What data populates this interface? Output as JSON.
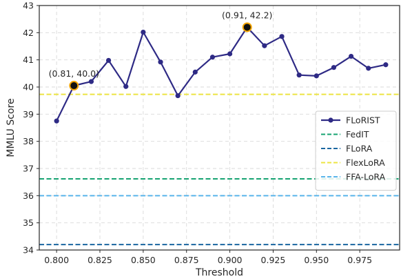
{
  "chart_data": {
    "type": "line",
    "xlabel": "Threshold",
    "ylabel": "MMLU Score",
    "xlim": [
      0.79,
      0.998
    ],
    "ylim": [
      34,
      43
    ],
    "xticks": [
      0.8,
      0.825,
      0.85,
      0.875,
      0.9,
      0.925,
      0.95,
      0.975
    ],
    "xtick_labels": [
      "0.800",
      "0.825",
      "0.850",
      "0.875",
      "0.900",
      "0.925",
      "0.950",
      "0.975"
    ],
    "yticks": [
      34,
      35,
      36,
      37,
      38,
      39,
      40,
      41,
      42,
      43
    ],
    "ytick_labels": [
      "34",
      "35",
      "36",
      "37",
      "38",
      "39",
      "40",
      "41",
      "42",
      "43"
    ],
    "grid": true,
    "legend_position": "center-right",
    "series": [
      {
        "name": "FLoRIST",
        "style": "line-marker",
        "color": "#2e2a85",
        "x": [
          0.8,
          0.81,
          0.82,
          0.83,
          0.84,
          0.85,
          0.86,
          0.87,
          0.88,
          0.89,
          0.9,
          0.91,
          0.92,
          0.93,
          0.94,
          0.95,
          0.96,
          0.97,
          0.98,
          0.99
        ],
        "y": [
          38.75,
          40.05,
          40.2,
          40.98,
          40.02,
          42.02,
          40.92,
          39.68,
          40.55,
          41.1,
          41.22,
          42.2,
          41.52,
          41.86,
          40.44,
          40.41,
          40.72,
          41.13,
          40.69,
          40.82
        ]
      },
      {
        "name": "FedIT",
        "style": "hline",
        "color": "#16a371",
        "y": 36.62
      },
      {
        "name": "FLoRA",
        "style": "hline",
        "color": "#1a66a0",
        "y": 34.2
      },
      {
        "name": "FlexLoRA",
        "style": "hline",
        "color": "#ece442",
        "y": 39.73
      },
      {
        "name": "FFA-LoRA",
        "style": "hline",
        "color": "#58b4ea",
        "y": 36.0
      }
    ],
    "annotations": [
      {
        "text": "(0.81, 40.0)",
        "x": 0.81,
        "y": 40.05
      },
      {
        "text": "(0.91, 42.2)",
        "x": 0.91,
        "y": 42.2
      }
    ],
    "highlight_marker": {
      "fill": "#111111",
      "edge": "#f2a400"
    }
  }
}
